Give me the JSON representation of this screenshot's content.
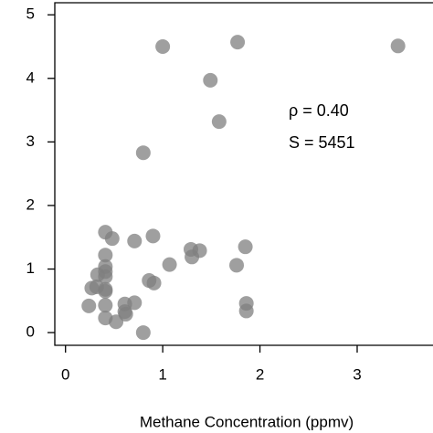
{
  "chart_data": {
    "type": "scatter",
    "xlabel": "Methane Concentration (ppmv)",
    "annotations": [
      "ρ = 0.40",
      "S = 5451"
    ],
    "color": "#7f7f7f",
    "xlim": [
      -0.11,
      3.78
    ],
    "ylim": [
      -0.2,
      5.19
    ],
    "xticks": [
      0,
      1,
      2,
      3
    ],
    "yticks": [
      0,
      1,
      2,
      3,
      4,
      5
    ],
    "x": [
      1.0,
      1.77,
      3.42,
      1.49,
      1.58,
      0.8,
      0.41,
      0.48,
      0.71,
      0.9,
      0.41,
      0.41,
      0.41,
      1.07,
      1.29,
      1.38,
      1.3,
      1.85,
      1.76,
      0.33,
      0.41,
      0.86,
      0.91,
      0.32,
      0.41,
      0.41,
      0.24,
      0.41,
      0.71,
      0.61,
      0.61,
      0.62,
      0.41,
      0.52,
      0.8,
      1.86,
      1.86,
      0.27
    ],
    "values": [
      4.5,
      4.57,
      4.51,
      3.97,
      3.32,
      2.83,
      1.58,
      1.48,
      1.44,
      1.52,
      1.22,
      1.04,
      0.96,
      1.07,
      1.31,
      1.29,
      1.19,
      1.35,
      1.06,
      0.91,
      0.88,
      0.82,
      0.78,
      0.72,
      0.68,
      0.65,
      0.42,
      0.43,
      0.47,
      0.45,
      0.33,
      0.29,
      0.23,
      0.17,
      0.0,
      0.46,
      0.34,
      0.7
    ]
  }
}
